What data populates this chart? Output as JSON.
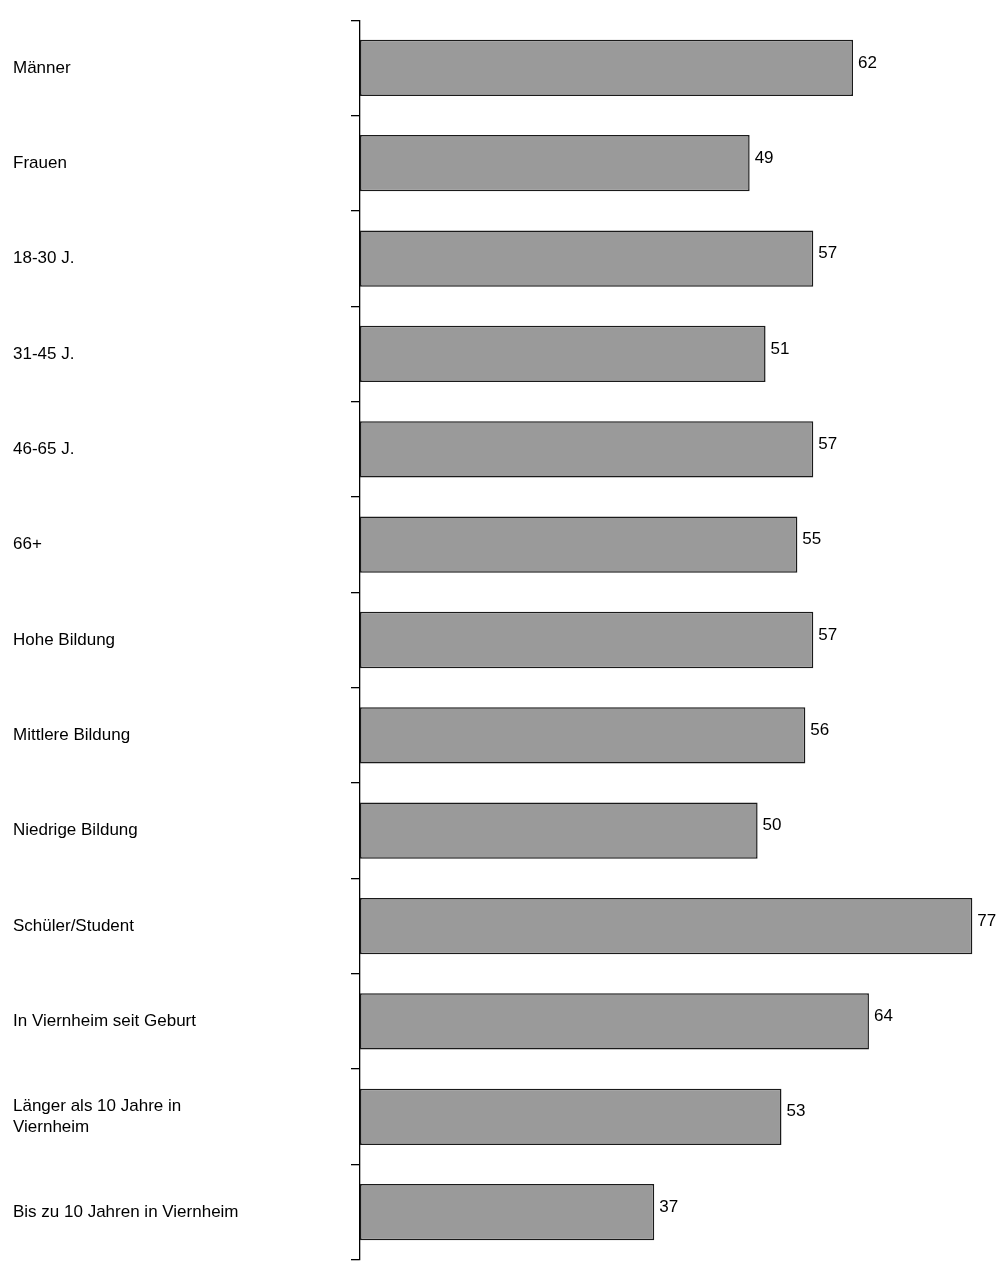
{
  "chart_data": {
    "type": "bar",
    "orientation": "horizontal",
    "categories": [
      "Männer",
      "Frauen",
      "18-30 J.",
      "31-45 J.",
      "46-65 J.",
      "66+",
      "Hohe Bildung",
      "Mittlere Bildung",
      "Niedrige Bildung",
      "Schüler/Student",
      "In Viernheim seit Geburt",
      "Länger als 10 Jahre in Viernheim",
      "Bis zu 10 Jahren in Viernheim"
    ],
    "values": [
      62,
      49,
      57,
      51,
      57,
      55,
      57,
      56,
      50,
      77,
      64,
      53,
      37
    ],
    "color": "#9a9a9a",
    "data_labels": true,
    "tick_labels": "y",
    "legend": false
  }
}
